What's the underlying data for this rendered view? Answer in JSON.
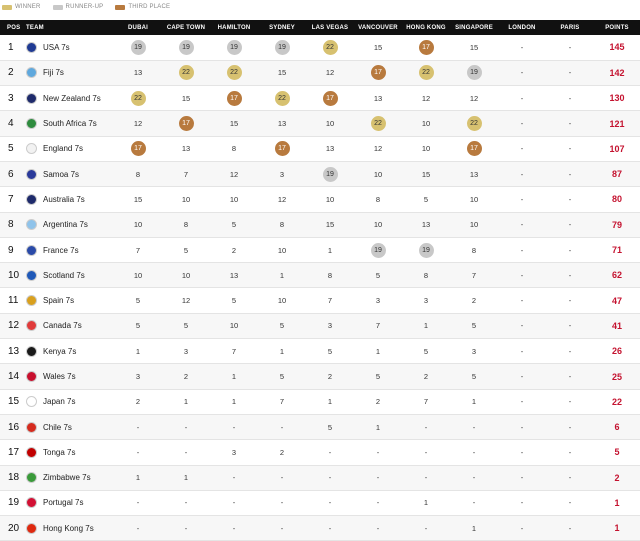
{
  "legend": [
    {
      "label": "WINNER",
      "color": "#d7c170"
    },
    {
      "label": "RUNNER-UP",
      "color": "#c8c8c8"
    },
    {
      "label": "THIRD PLACE",
      "color": "#b87a3e"
    }
  ],
  "columns": [
    "POS",
    "TEAM",
    "DUBAI",
    "CAPE TOWN",
    "HAMILTON",
    "SYDNEY",
    "LAS VEGAS",
    "VANCOUVER",
    "HONG KONG",
    "SINGAPORE",
    "LONDON",
    "PARIS",
    "POINTS"
  ],
  "rows": [
    {
      "pos": "1",
      "team": "USA 7s",
      "flag": "#1f3a93",
      "scores": [
        [
          "19",
          "r"
        ],
        [
          "19",
          "r"
        ],
        [
          "19",
          "r"
        ],
        [
          "19",
          "r"
        ],
        [
          "22",
          "w"
        ],
        [
          "15",
          ""
        ],
        [
          "17",
          "t"
        ],
        [
          "15",
          ""
        ],
        [
          "-",
          ""
        ],
        [
          "-",
          ""
        ]
      ],
      "points": "145"
    },
    {
      "pos": "2",
      "team": "Fiji 7s",
      "flag": "#5fa8dd",
      "scores": [
        [
          "13",
          ""
        ],
        [
          "22",
          "w"
        ],
        [
          "22",
          "w"
        ],
        [
          "15",
          ""
        ],
        [
          "12",
          ""
        ],
        [
          "17",
          "t"
        ],
        [
          "22",
          "w"
        ],
        [
          "19",
          "r"
        ],
        [
          "-",
          ""
        ],
        [
          "-",
          ""
        ]
      ],
      "points": "142"
    },
    {
      "pos": "3",
      "team": "New Zealand 7s",
      "flag": "#1e2a6b",
      "scores": [
        [
          "22",
          "w"
        ],
        [
          "15",
          ""
        ],
        [
          "17",
          "t"
        ],
        [
          "22",
          "w"
        ],
        [
          "17",
          "t"
        ],
        [
          "13",
          ""
        ],
        [
          "12",
          ""
        ],
        [
          "12",
          ""
        ],
        [
          "-",
          ""
        ],
        [
          "-",
          ""
        ]
      ],
      "points": "130"
    },
    {
      "pos": "4",
      "team": "South Africa 7s",
      "flag": "#2e8b3e",
      "scores": [
        [
          "12",
          ""
        ],
        [
          "17",
          "t"
        ],
        [
          "15",
          ""
        ],
        [
          "13",
          ""
        ],
        [
          "10",
          ""
        ],
        [
          "22",
          "w"
        ],
        [
          "10",
          ""
        ],
        [
          "22",
          "w"
        ],
        [
          "-",
          ""
        ],
        [
          "-",
          ""
        ]
      ],
      "points": "121"
    },
    {
      "pos": "5",
      "team": "England 7s",
      "flag": "#f2f2f2",
      "scores": [
        [
          "17",
          "t"
        ],
        [
          "13",
          ""
        ],
        [
          "8",
          ""
        ],
        [
          "17",
          "t"
        ],
        [
          "13",
          ""
        ],
        [
          "12",
          ""
        ],
        [
          "10",
          ""
        ],
        [
          "17",
          "t"
        ],
        [
          "-",
          ""
        ],
        [
          "-",
          ""
        ]
      ],
      "points": "107"
    },
    {
      "pos": "6",
      "team": "Samoa 7s",
      "flag": "#2a3a9a",
      "scores": [
        [
          "8",
          ""
        ],
        [
          "7",
          ""
        ],
        [
          "12",
          ""
        ],
        [
          "3",
          ""
        ],
        [
          "19",
          "r"
        ],
        [
          "10",
          ""
        ],
        [
          "15",
          ""
        ],
        [
          "13",
          ""
        ],
        [
          "-",
          ""
        ],
        [
          "-",
          ""
        ]
      ],
      "points": "87"
    },
    {
      "pos": "7",
      "team": "Australia 7s",
      "flag": "#1e2a6b",
      "scores": [
        [
          "15",
          ""
        ],
        [
          "10",
          ""
        ],
        [
          "10",
          ""
        ],
        [
          "12",
          ""
        ],
        [
          "10",
          ""
        ],
        [
          "8",
          ""
        ],
        [
          "5",
          ""
        ],
        [
          "10",
          ""
        ],
        [
          "-",
          ""
        ],
        [
          "-",
          ""
        ]
      ],
      "points": "80"
    },
    {
      "pos": "8",
      "team": "Argentina 7s",
      "flag": "#8fc3ea",
      "scores": [
        [
          "10",
          ""
        ],
        [
          "8",
          ""
        ],
        [
          "5",
          ""
        ],
        [
          "8",
          ""
        ],
        [
          "15",
          ""
        ],
        [
          "10",
          ""
        ],
        [
          "13",
          ""
        ],
        [
          "10",
          ""
        ],
        [
          "-",
          ""
        ],
        [
          "-",
          ""
        ]
      ],
      "points": "79"
    },
    {
      "pos": "9",
      "team": "France 7s",
      "flag": "#2a4aa8",
      "scores": [
        [
          "7",
          ""
        ],
        [
          "5",
          ""
        ],
        [
          "2",
          ""
        ],
        [
          "10",
          ""
        ],
        [
          "1",
          ""
        ],
        [
          "19",
          "r"
        ],
        [
          "19",
          "r"
        ],
        [
          "8",
          ""
        ],
        [
          "-",
          ""
        ],
        [
          "-",
          ""
        ]
      ],
      "points": "71"
    },
    {
      "pos": "10",
      "team": "Scotland 7s",
      "flag": "#2059b8",
      "scores": [
        [
          "10",
          ""
        ],
        [
          "10",
          ""
        ],
        [
          "13",
          ""
        ],
        [
          "1",
          ""
        ],
        [
          "8",
          ""
        ],
        [
          "5",
          ""
        ],
        [
          "8",
          ""
        ],
        [
          "7",
          ""
        ],
        [
          "-",
          ""
        ],
        [
          "-",
          ""
        ]
      ],
      "points": "62"
    },
    {
      "pos": "11",
      "team": "Spain 7s",
      "flag": "#d9a01e",
      "scores": [
        [
          "5",
          ""
        ],
        [
          "12",
          ""
        ],
        [
          "5",
          ""
        ],
        [
          "10",
          ""
        ],
        [
          "7",
          ""
        ],
        [
          "3",
          ""
        ],
        [
          "3",
          ""
        ],
        [
          "2",
          ""
        ],
        [
          "-",
          ""
        ],
        [
          "-",
          ""
        ]
      ],
      "points": "47"
    },
    {
      "pos": "12",
      "team": "Canada 7s",
      "flag": "#e03b3b",
      "scores": [
        [
          "5",
          ""
        ],
        [
          "5",
          ""
        ],
        [
          "10",
          ""
        ],
        [
          "5",
          ""
        ],
        [
          "3",
          ""
        ],
        [
          "7",
          ""
        ],
        [
          "1",
          ""
        ],
        [
          "5",
          ""
        ],
        [
          "-",
          ""
        ],
        [
          "-",
          ""
        ]
      ],
      "points": "41"
    },
    {
      "pos": "13",
      "team": "Kenya 7s",
      "flag": "#1a1a1a",
      "scores": [
        [
          "1",
          ""
        ],
        [
          "3",
          ""
        ],
        [
          "7",
          ""
        ],
        [
          "1",
          ""
        ],
        [
          "5",
          ""
        ],
        [
          "1",
          ""
        ],
        [
          "5",
          ""
        ],
        [
          "3",
          ""
        ],
        [
          "-",
          ""
        ],
        [
          "-",
          ""
        ]
      ],
      "points": "26"
    },
    {
      "pos": "14",
      "team": "Wales 7s",
      "flag": "#c8102e",
      "scores": [
        [
          "3",
          ""
        ],
        [
          "2",
          ""
        ],
        [
          "1",
          ""
        ],
        [
          "5",
          ""
        ],
        [
          "2",
          ""
        ],
        [
          "5",
          ""
        ],
        [
          "2",
          ""
        ],
        [
          "5",
          ""
        ],
        [
          "-",
          ""
        ],
        [
          "-",
          ""
        ]
      ],
      "points": "25"
    },
    {
      "pos": "15",
      "team": "Japan 7s",
      "flag": "#ffffff",
      "scores": [
        [
          "2",
          ""
        ],
        [
          "1",
          ""
        ],
        [
          "1",
          ""
        ],
        [
          "7",
          ""
        ],
        [
          "1",
          ""
        ],
        [
          "2",
          ""
        ],
        [
          "7",
          ""
        ],
        [
          "1",
          ""
        ],
        [
          "-",
          ""
        ],
        [
          "-",
          ""
        ]
      ],
      "points": "22"
    },
    {
      "pos": "16",
      "team": "Chile 7s",
      "flag": "#d52b1e",
      "scores": [
        [
          "-",
          ""
        ],
        [
          "-",
          ""
        ],
        [
          "-",
          ""
        ],
        [
          "-",
          ""
        ],
        [
          "5",
          ""
        ],
        [
          "1",
          ""
        ],
        [
          "-",
          ""
        ],
        [
          "-",
          ""
        ],
        [
          "-",
          ""
        ],
        [
          "-",
          ""
        ]
      ],
      "points": "6"
    },
    {
      "pos": "17",
      "team": "Tonga 7s",
      "flag": "#c10000",
      "scores": [
        [
          "-",
          ""
        ],
        [
          "-",
          ""
        ],
        [
          "3",
          ""
        ],
        [
          "2",
          ""
        ],
        [
          "-",
          ""
        ],
        [
          "-",
          ""
        ],
        [
          "-",
          ""
        ],
        [
          "-",
          ""
        ],
        [
          "-",
          ""
        ],
        [
          "-",
          ""
        ]
      ],
      "points": "5"
    },
    {
      "pos": "18",
      "team": "Zimbabwe 7s",
      "flag": "#3a9a3a",
      "scores": [
        [
          "1",
          ""
        ],
        [
          "1",
          ""
        ],
        [
          "-",
          ""
        ],
        [
          "-",
          ""
        ],
        [
          "-",
          ""
        ],
        [
          "-",
          ""
        ],
        [
          "-",
          ""
        ],
        [
          "-",
          ""
        ],
        [
          "-",
          ""
        ],
        [
          "-",
          ""
        ]
      ],
      "points": "2"
    },
    {
      "pos": "19",
      "team": "Portugal 7s",
      "flag": "#d21034",
      "scores": [
        [
          "-",
          ""
        ],
        [
          "-",
          ""
        ],
        [
          "-",
          ""
        ],
        [
          "-",
          ""
        ],
        [
          "-",
          ""
        ],
        [
          "-",
          ""
        ],
        [
          "1",
          ""
        ],
        [
          "-",
          ""
        ],
        [
          "-",
          ""
        ],
        [
          "-",
          ""
        ]
      ],
      "points": "1"
    },
    {
      "pos": "20",
      "team": "Hong Kong 7s",
      "flag": "#de2910",
      "scores": [
        [
          "-",
          ""
        ],
        [
          "-",
          ""
        ],
        [
          "-",
          ""
        ],
        [
          "-",
          ""
        ],
        [
          "-",
          ""
        ],
        [
          "-",
          ""
        ],
        [
          "-",
          ""
        ],
        [
          "1",
          ""
        ],
        [
          "-",
          ""
        ],
        [
          "-",
          ""
        ]
      ],
      "points": "1"
    }
  ]
}
